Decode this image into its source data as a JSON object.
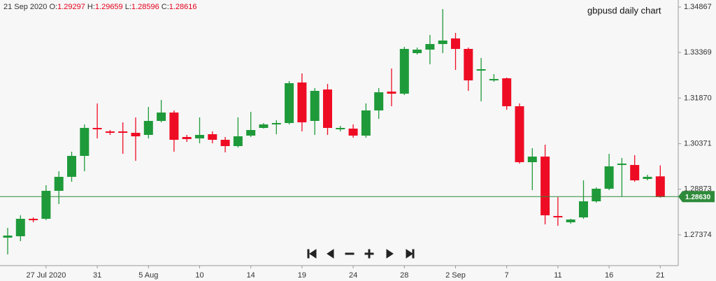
{
  "chart_data": {
    "type": "candlestick",
    "title": "gbpusd daily chart",
    "header": {
      "date": "21 Sep 2020",
      "o_label": "O:",
      "h_label": "H:",
      "l_label": "L:",
      "c_label": "C:"
    },
    "categories": [
      null,
      null,
      null,
      "27 Jul 2020",
      null,
      null,
      null,
      "31",
      null,
      null,
      null,
      "5 Aug",
      null,
      null,
      null,
      "10",
      null,
      null,
      null,
      "14",
      null,
      null,
      null,
      "19",
      null,
      null,
      null,
      "24",
      null,
      null,
      null,
      "28",
      null,
      null,
      null,
      "2 Sep",
      null,
      null,
      null,
      "7",
      null,
      null,
      null,
      "11",
      null,
      null,
      null,
      "16",
      null,
      null,
      null,
      "21"
    ],
    "open": [
      1.27281,
      1.27327,
      1.27901,
      1.27901,
      1.28821,
      1.29281,
      1.2997,
      1.3089,
      1.30775,
      1.30775,
      1.30729,
      1.3066,
      1.3112,
      1.31396,
      1.30591,
      1.30545,
      1.30683,
      1.30499,
      1.30292,
      1.30637,
      1.3089,
      1.31005,
      1.31051,
      1.32384,
      1.3112,
      1.32154,
      1.30844,
      1.30867,
      1.30637,
      1.31465,
      1.32085,
      1.32016,
      1.3335,
      1.33465,
      1.33649,
      1.33833,
      1.33488,
      1.32775,
      1.32453,
      1.32522,
      1.31603,
      1.29763,
      1.29947,
      1.27993,
      1.27786,
      1.27947,
      1.28476,
      1.2889,
      1.29671,
      1.29671,
      1.29212,
      1.29297
    ],
    "high": [
      1.27602,
      1.28016,
      1.27947,
      1.29005,
      1.29465,
      1.30108,
      1.31005,
      1.31695,
      1.30821,
      1.31074,
      1.31235,
      1.3158,
      1.3181,
      1.31465,
      1.3066,
      1.31235,
      1.30775,
      1.30591,
      1.31235,
      1.31419,
      1.31051,
      1.31143,
      1.3243,
      1.32683,
      1.322,
      1.32338,
      1.30959,
      1.31005,
      1.31695,
      1.322,
      1.32844,
      1.33557,
      1.33534,
      1.33947,
      1.34798,
      1.34016,
      1.33534,
      1.33189,
      1.3266,
      1.32545,
      1.31695,
      1.30223,
      1.30338,
      1.28614,
      1.27901,
      1.29166,
      1.28936,
      1.30039,
      1.29901,
      1.29993,
      1.2935,
      1.29659
    ],
    "low": [
      1.26729,
      1.27166,
      1.27786,
      1.27855,
      1.28384,
      1.2912,
      1.29465,
      1.30545,
      1.3066,
      1.30039,
      1.29809,
      1.30545,
      1.31074,
      1.30108,
      1.3043,
      1.30384,
      1.30384,
      1.30085,
      1.30246,
      1.30591,
      1.30867,
      1.30683,
      1.31005,
      1.30775,
      1.3066,
      1.3066,
      1.30775,
      1.30568,
      1.30568,
      1.31189,
      1.31603,
      1.3197,
      1.33304,
      1.32982,
      1.3335,
      1.32798,
      1.32108,
      1.31764,
      1.32407,
      1.31488,
      1.29717,
      1.28844,
      1.27717,
      1.27671,
      1.2774,
      1.27901,
      1.2843,
      1.28844,
      1.28637,
      1.2912,
      1.29166,
      1.28596
    ],
    "close": [
      1.2735,
      1.27901,
      1.27855,
      1.28821,
      1.29281,
      1.2997,
      1.3089,
      1.30844,
      1.30729,
      1.30729,
      1.30614,
      1.3112,
      1.31396,
      1.30499,
      1.30522,
      1.3066,
      1.30499,
      1.30292,
      1.30614,
      1.30821,
      1.31005,
      1.31051,
      1.32361,
      1.31074,
      1.32108,
      1.3089,
      1.3089,
      1.30637,
      1.31465,
      1.32062,
      1.32016,
      1.33488,
      1.33465,
      1.33649,
      1.33764,
      1.33488,
      1.32453,
      1.32821,
      1.32499,
      1.31603,
      1.29763,
      1.29947,
      1.28016,
      1.27947,
      1.27878,
      1.28476,
      1.2889,
      1.29626,
      1.29717,
      1.29166,
      1.29281,
      1.28616
    ],
    "up_color": "#1f9a3a",
    "down_color": "#ee0c24",
    "last_price": {
      "value": 1.2863,
      "label": "1.28630"
    },
    "last_price_color": "#2e8b3a",
    "ylim": [
      1.26361,
      1.35097
    ],
    "yticks": [
      1.34867,
      1.33369,
      {
        "value": 1.3187,
        "label": "1.31870"
      },
      1.30371,
      1.28873,
      1.27374
    ]
  }
}
